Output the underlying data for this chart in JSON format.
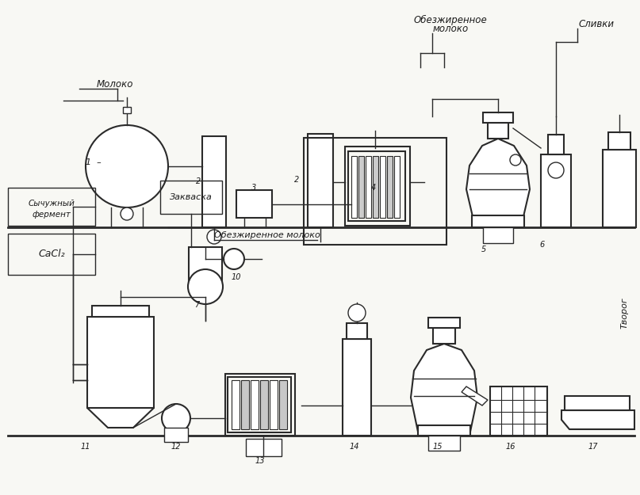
{
  "bg_color": "#f8f8f4",
  "line_color": "#2a2a2a",
  "text_color": "#1a1a1a",
  "labels": {
    "moloko": "Молоко",
    "obez_moloko_top": "Обезжиренное\nмолоко",
    "slivki": "Сливки",
    "sychuzh_1": "Сычужный",
    "sychuzh_2": "фермент",
    "obez_moloko_bot": "Обезжиренное молоко",
    "zakvasko": "Закваска",
    "cacl2": "CaCl₂",
    "tvorog": "Творог"
  },
  "numbers": [
    "1",
    "2",
    "3",
    "4",
    "5",
    "6",
    "7",
    "10",
    "11",
    "12",
    "13",
    "14",
    "15",
    "16",
    "17"
  ]
}
